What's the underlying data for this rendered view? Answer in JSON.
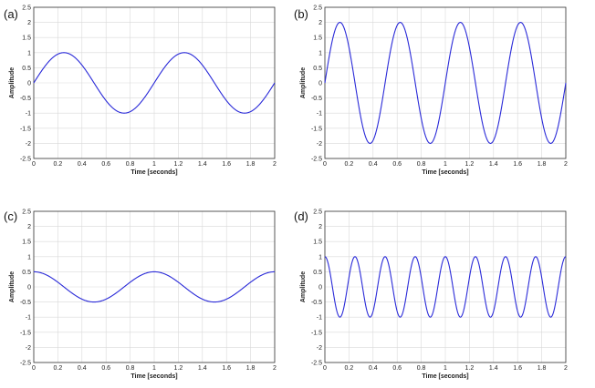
{
  "panels": [
    {
      "label": "(a)"
    },
    {
      "label": "(b)"
    },
    {
      "label": "(c)"
    },
    {
      "label": "(d)"
    }
  ],
  "colors": {
    "line": "#2a2ad8",
    "grid": "#d9d9d9",
    "axis": "#333333"
  },
  "chart_data": [
    {
      "type": "line",
      "panel": "(a)",
      "xlabel": "Time [seconds]",
      "ylabel": "Amplitude",
      "xlim": [
        0,
        2
      ],
      "ylim": [
        -2.5,
        2.5
      ],
      "xticks": [
        "0",
        "0.2",
        "0.4",
        "0.6",
        "0.8",
        "1",
        "1.2",
        "1.4",
        "1.6",
        "1.8",
        "2"
      ],
      "yticks": [
        "2.5",
        "2",
        "1.5",
        "1",
        "0.5",
        "0",
        "-0.5",
        "-1",
        "-1.5",
        "-2",
        "-2.5"
      ],
      "grid": true,
      "series": [
        {
          "function": "sine",
          "amplitude": 1,
          "frequency_hz": 1,
          "phase": 0,
          "offset": 0
        }
      ]
    },
    {
      "type": "line",
      "panel": "(b)",
      "xlabel": "Time [seconds]",
      "ylabel": "Amplitude",
      "xlim": [
        0,
        2
      ],
      "ylim": [
        -2.5,
        2.5
      ],
      "xticks": [
        "0",
        "0.2",
        "0.4",
        "0.6",
        "0.8",
        "1",
        "1.2",
        "1.4",
        "1.6",
        "1.8",
        "2"
      ],
      "yticks": [
        "2.5",
        "2",
        "1.5",
        "1",
        "0.5",
        "0",
        "-0.5",
        "-1",
        "-1.5",
        "-2",
        "-2.5"
      ],
      "grid": true,
      "series": [
        {
          "function": "sine",
          "amplitude": 2,
          "frequency_hz": 2,
          "phase": 0,
          "offset": 0
        }
      ]
    },
    {
      "type": "line",
      "panel": "(c)",
      "xlabel": "Time [seconds]",
      "ylabel": "Amplitude",
      "xlim": [
        0,
        2
      ],
      "ylim": [
        -2.5,
        2.5
      ],
      "xticks": [
        "0",
        "0.2",
        "0.4",
        "0.6",
        "0.8",
        "1",
        "1.2",
        "1.4",
        "1.6",
        "1.8",
        "2"
      ],
      "yticks": [
        "2.5",
        "2",
        "1.5",
        "1",
        "0.5",
        "0",
        "-0.5",
        "-1",
        "-1.5",
        "-2",
        "-2.5"
      ],
      "grid": true,
      "series": [
        {
          "function": "cosine",
          "amplitude": 0.5,
          "frequency_hz": 1,
          "phase": 0,
          "offset": 0
        }
      ]
    },
    {
      "type": "line",
      "panel": "(d)",
      "xlabel": "Time [seconds]",
      "ylabel": "Amplitude",
      "xlim": [
        0,
        2
      ],
      "ylim": [
        -2.5,
        2.5
      ],
      "xticks": [
        "0",
        "0.2",
        "0.4",
        "0.6",
        "0.8",
        "1",
        "1.2",
        "1.4",
        "1.6",
        "1.8",
        "2"
      ],
      "yticks": [
        "2.5",
        "2",
        "1.5",
        "1",
        "0.5",
        "0",
        "-0.5",
        "-1",
        "-1.5",
        "-2",
        "-2.5"
      ],
      "grid": true,
      "series": [
        {
          "function": "cosine",
          "amplitude": 1,
          "frequency_hz": 4,
          "phase": 0,
          "offset": 0
        }
      ]
    }
  ]
}
